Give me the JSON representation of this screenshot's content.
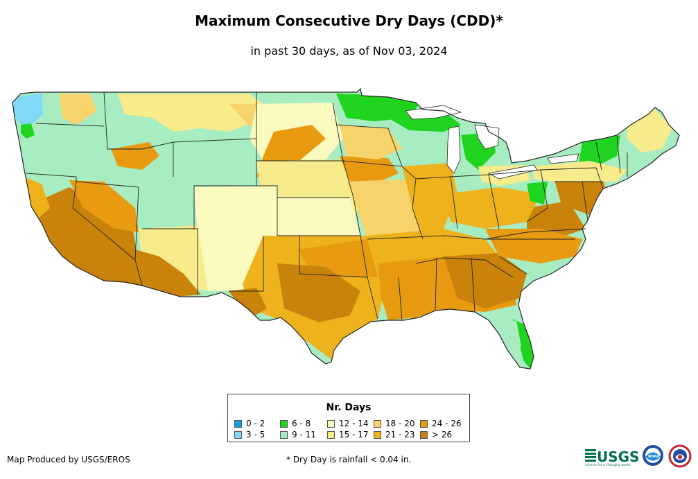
{
  "title": "Maximum Consecutive Dry Days (CDD)*",
  "subtitle": "in past 30 days, as of Nov 03, 2024",
  "legend": {
    "title": "Nr. Days",
    "items": [
      {
        "label": "0 - 2",
        "color": "#1a9be8"
      },
      {
        "label": "3 - 5",
        "color": "#7fd9f7"
      },
      {
        "label": "6 - 8",
        "color": "#1fd41f"
      },
      {
        "label": "9 - 11",
        "color": "#a8ecc2"
      },
      {
        "label": "12 - 14",
        "color": "#fafabf"
      },
      {
        "label": "15 - 17",
        "color": "#f7eb8c"
      },
      {
        "label": "18 - 20",
        "color": "#f6d46b"
      },
      {
        "label": "21 - 23",
        "color": "#eeb21c"
      },
      {
        "label": "24 - 26",
        "color": "#e89b10"
      },
      {
        "label": "> 26",
        "color": "#c9820a"
      }
    ]
  },
  "credit": "Map Produced by USGS/EROS",
  "footnote": "* Dry Day is rainfall < 0.04 in.",
  "logos": {
    "usgs": "USGS",
    "usgs_tagline": "science for a changing world",
    "noaa": "NOAA"
  },
  "colors": {
    "state_border": "#222222",
    "background": "#ffffff"
  }
}
